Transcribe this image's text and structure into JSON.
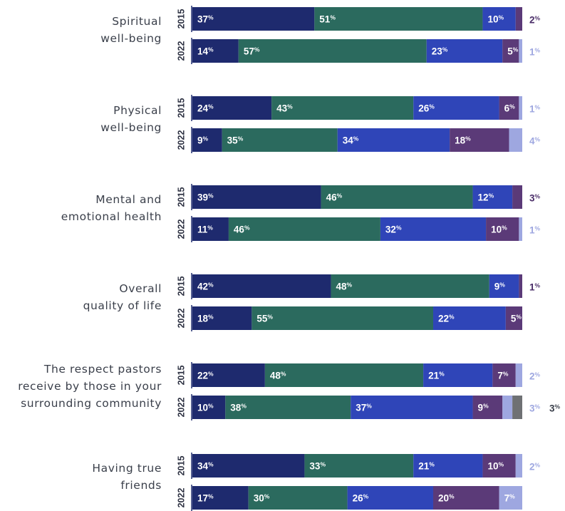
{
  "colors": {
    "very_satisfied": "#1e2a6e",
    "somewhat_satisfied": "#2b6a5e",
    "somewhat_dissatisfied": "#2f45b8",
    "very_dissatisfied": "#5b3a78",
    "other": "#9ea7e0",
    "gray": "#6f7174"
  },
  "chart_data": {
    "type": "bar",
    "orientation": "horizontal",
    "stacked": true,
    "xlim": [
      0,
      100
    ],
    "unit": "%",
    "categories": [
      "Spiritual well-being",
      "Physical well-being",
      "Mental and emotional health",
      "Overall quality of life",
      "The respect pastors receive by those in your surrounding community",
      "Having true friends"
    ],
    "category_lines": [
      [
        "Spiritual",
        "well-being"
      ],
      [
        "Physical",
        "well-being"
      ],
      [
        "Mental and",
        "emotional health"
      ],
      [
        "Overall",
        "quality of life"
      ],
      [
        "The respect pastors",
        "receive by those in your",
        "surrounding community"
      ],
      [
        "Having true",
        "friends"
      ]
    ],
    "groups": [
      "2015",
      "2022"
    ],
    "rows": [
      {
        "category": 0,
        "year": "2015",
        "values": [
          37,
          51,
          10,
          2
        ],
        "labels": [
          "37",
          "51",
          "10",
          "2"
        ],
        "colors": [
          "very_satisfied",
          "somewhat_satisfied",
          "somewhat_dissatisfied",
          "very_dissatisfied"
        ],
        "outside": [
          3
        ]
      },
      {
        "category": 0,
        "year": "2022",
        "values": [
          14,
          57,
          23,
          5,
          1
        ],
        "labels": [
          "14",
          "57",
          "23",
          "5",
          "1"
        ],
        "colors": [
          "very_satisfied",
          "somewhat_satisfied",
          "somewhat_dissatisfied",
          "very_dissatisfied",
          "other"
        ],
        "outside": [
          4
        ]
      },
      {
        "category": 1,
        "year": "2015",
        "values": [
          24,
          43,
          26,
          6,
          1
        ],
        "labels": [
          "24",
          "43",
          "26",
          "6",
          "1"
        ],
        "colors": [
          "very_satisfied",
          "somewhat_satisfied",
          "somewhat_dissatisfied",
          "very_dissatisfied",
          "other"
        ],
        "outside": [
          4
        ]
      },
      {
        "category": 1,
        "year": "2022",
        "values": [
          9,
          35,
          34,
          18,
          4
        ],
        "labels": [
          "9",
          "35",
          "34",
          "18",
          "4"
        ],
        "colors": [
          "very_satisfied",
          "somewhat_satisfied",
          "somewhat_dissatisfied",
          "very_dissatisfied",
          "other"
        ],
        "outside": [
          4
        ]
      },
      {
        "category": 2,
        "year": "2015",
        "values": [
          39,
          46,
          12,
          3
        ],
        "labels": [
          "39",
          "46",
          "12",
          "3"
        ],
        "colors": [
          "very_satisfied",
          "somewhat_satisfied",
          "somewhat_dissatisfied",
          "very_dissatisfied"
        ],
        "outside": [
          3
        ]
      },
      {
        "category": 2,
        "year": "2022",
        "values": [
          11,
          46,
          32,
          10,
          1
        ],
        "labels": [
          "11",
          "46",
          "32",
          "10",
          "1"
        ],
        "colors": [
          "very_satisfied",
          "somewhat_satisfied",
          "somewhat_dissatisfied",
          "very_dissatisfied",
          "other"
        ],
        "outside": [
          4
        ]
      },
      {
        "category": 3,
        "year": "2015",
        "values": [
          42,
          48,
          9,
          1
        ],
        "labels": [
          "42",
          "48",
          "9",
          "1"
        ],
        "colors": [
          "very_satisfied",
          "somewhat_satisfied",
          "somewhat_dissatisfied",
          "very_dissatisfied"
        ],
        "outside": [
          3
        ]
      },
      {
        "category": 3,
        "year": "2022",
        "values": [
          18,
          55,
          22,
          5
        ],
        "labels": [
          "18",
          "55",
          "22",
          "5"
        ],
        "colors": [
          "very_satisfied",
          "somewhat_satisfied",
          "somewhat_dissatisfied",
          "very_dissatisfied"
        ],
        "outside": []
      },
      {
        "category": 4,
        "year": "2015",
        "values": [
          22,
          48,
          21,
          7,
          2
        ],
        "labels": [
          "22",
          "48",
          "21",
          "7",
          "2"
        ],
        "colors": [
          "very_satisfied",
          "somewhat_satisfied",
          "somewhat_dissatisfied",
          "very_dissatisfied",
          "other"
        ],
        "outside": [
          4
        ]
      },
      {
        "category": 4,
        "year": "2022",
        "values": [
          10,
          38,
          37,
          9,
          3,
          3
        ],
        "labels": [
          "10",
          "38",
          "37",
          "9",
          "3",
          "3"
        ],
        "colors": [
          "very_satisfied",
          "somewhat_satisfied",
          "somewhat_dissatisfied",
          "very_dissatisfied",
          "other",
          "gray"
        ],
        "outside": [
          4,
          5
        ]
      },
      {
        "category": 5,
        "year": "2015",
        "values": [
          34,
          33,
          21,
          10,
          2
        ],
        "labels": [
          "34",
          "33",
          "21",
          "10",
          "2"
        ],
        "colors": [
          "very_satisfied",
          "somewhat_satisfied",
          "somewhat_dissatisfied",
          "very_dissatisfied",
          "other"
        ],
        "outside": [
          4
        ]
      },
      {
        "category": 5,
        "year": "2022",
        "values": [
          17,
          30,
          26,
          20,
          7
        ],
        "labels": [
          "17",
          "30",
          "26",
          "20",
          "7"
        ],
        "colors": [
          "very_satisfied",
          "somewhat_satisfied",
          "somewhat_dissatisfied",
          "very_dissatisfied",
          "other"
        ],
        "outside": []
      }
    ]
  }
}
